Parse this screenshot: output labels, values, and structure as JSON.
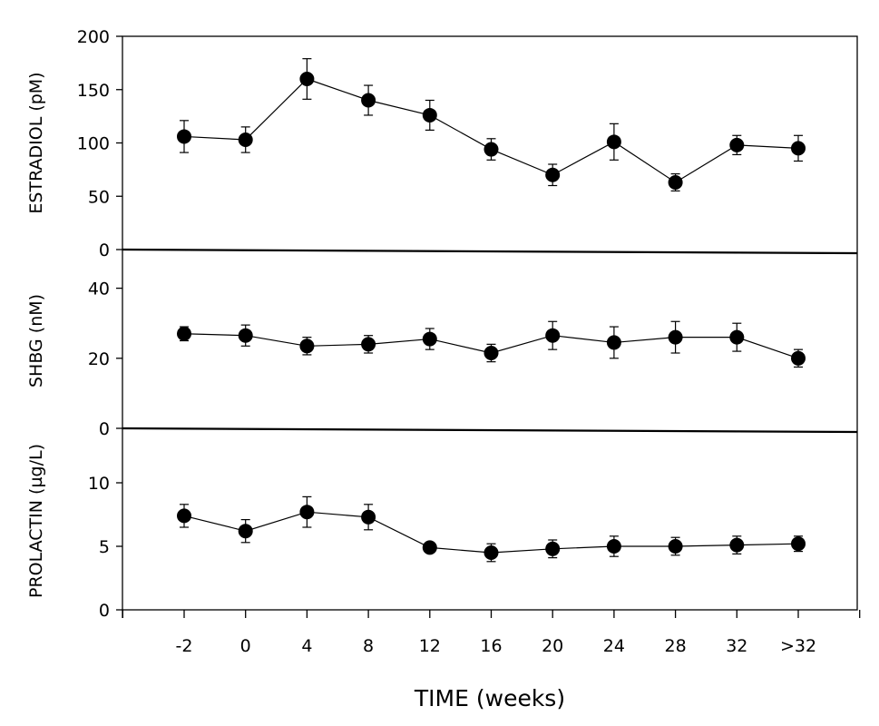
{
  "chart_data": {
    "type": "line",
    "layout": "three vertically stacked panels sharing the x axis",
    "categories": [
      "-2",
      "0",
      "4",
      "8",
      "12",
      "16",
      "20",
      "24",
      "28",
      "32",
      ">32"
    ],
    "xlabel": "TIME (weeks)",
    "grid": false,
    "legend": "none",
    "marker": "filled circle with error bars",
    "color": "#000000",
    "panels": [
      {
        "ylabel": "ESTRADIOL (pM)",
        "ylim": [
          0,
          200
        ],
        "yticks": [
          0,
          50,
          100,
          150,
          200
        ],
        "values": [
          106,
          103,
          160,
          140,
          126,
          94,
          70,
          101,
          63,
          98,
          95
        ],
        "errors": [
          15,
          12,
          19,
          14,
          14,
          10,
          10,
          17,
          8,
          9,
          12
        ]
      },
      {
        "ylabel": "SHBG (nM)",
        "ylim": [
          0,
          50
        ],
        "yticks": [
          0,
          20,
          40
        ],
        "values": [
          27,
          26.5,
          23.5,
          24,
          25.5,
          21.5,
          26.5,
          24.5,
          26,
          26,
          20
        ],
        "errors": [
          2,
          3,
          2.5,
          2.5,
          3,
          2.5,
          4,
          4.5,
          4.5,
          4,
          2.5
        ]
      },
      {
        "ylabel": "PROLACTIN (µg/L)",
        "ylim": [
          0,
          14
        ],
        "yticks": [
          0,
          5,
          10
        ],
        "values": [
          7.4,
          6.2,
          7.7,
          7.3,
          4.9,
          4.5,
          4.8,
          5.0,
          5.0,
          5.1,
          5.2
        ],
        "errors": [
          0.9,
          0.9,
          1.2,
          1.0,
          0.3,
          0.7,
          0.7,
          0.8,
          0.7,
          0.7,
          0.6
        ]
      }
    ]
  }
}
